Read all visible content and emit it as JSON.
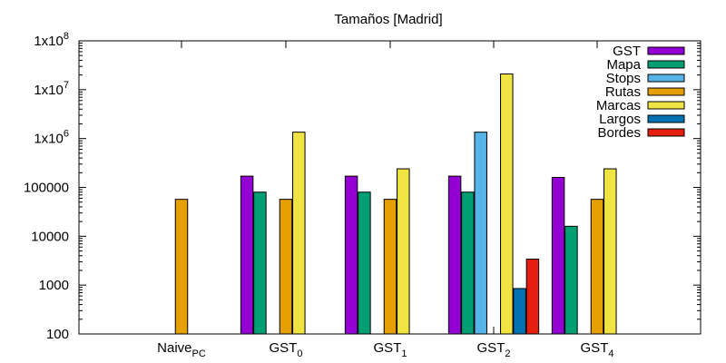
{
  "chart_data": {
    "type": "bar",
    "title": "Tamaños [Madrid]",
    "y_scale": "log",
    "ylim": [
      100,
      100000000
    ],
    "grid": false,
    "legend_position": "top-right",
    "y_ticks": [
      {
        "value": 100,
        "label": "100"
      },
      {
        "value": 1000,
        "label": "1000"
      },
      {
        "value": 10000,
        "label": "10000"
      },
      {
        "value": 100000,
        "label": "100000"
      },
      {
        "value": 1000000,
        "base": "1x10",
        "exp": "6"
      },
      {
        "value": 10000000,
        "base": "1x10",
        "exp": "7"
      },
      {
        "value": 100000000,
        "base": "1x10",
        "exp": "8"
      }
    ],
    "categories": [
      {
        "base": "Naive",
        "sub": "PC"
      },
      {
        "base": "GST",
        "sub": "0"
      },
      {
        "base": "GST",
        "sub": "1"
      },
      {
        "base": "GST",
        "sub": "2"
      },
      {
        "base": "GST",
        "sub": "4"
      }
    ],
    "series": [
      {
        "name": "GST",
        "color": "#9400d3",
        "values": [
          null,
          170000,
          170000,
          170000,
          160000
        ]
      },
      {
        "name": "Mapa",
        "color": "#009e73",
        "values": [
          null,
          80000,
          80000,
          80000,
          16000
        ]
      },
      {
        "name": "Stops",
        "color": "#56b4e9",
        "values": [
          null,
          null,
          null,
          1350000,
          null
        ]
      },
      {
        "name": "Rutas",
        "color": "#e69f00",
        "values": [
          57000,
          57000,
          57000,
          null,
          57000
        ]
      },
      {
        "name": "Marcas",
        "color": "#f0e442",
        "values": [
          null,
          1350000,
          240000,
          21000000,
          240000
        ]
      },
      {
        "name": "Largos",
        "color": "#0072b2",
        "values": [
          null,
          null,
          null,
          850,
          null
        ]
      },
      {
        "name": "Bordes",
        "color": "#e51e10",
        "values": [
          null,
          null,
          null,
          3400,
          null
        ]
      }
    ]
  }
}
